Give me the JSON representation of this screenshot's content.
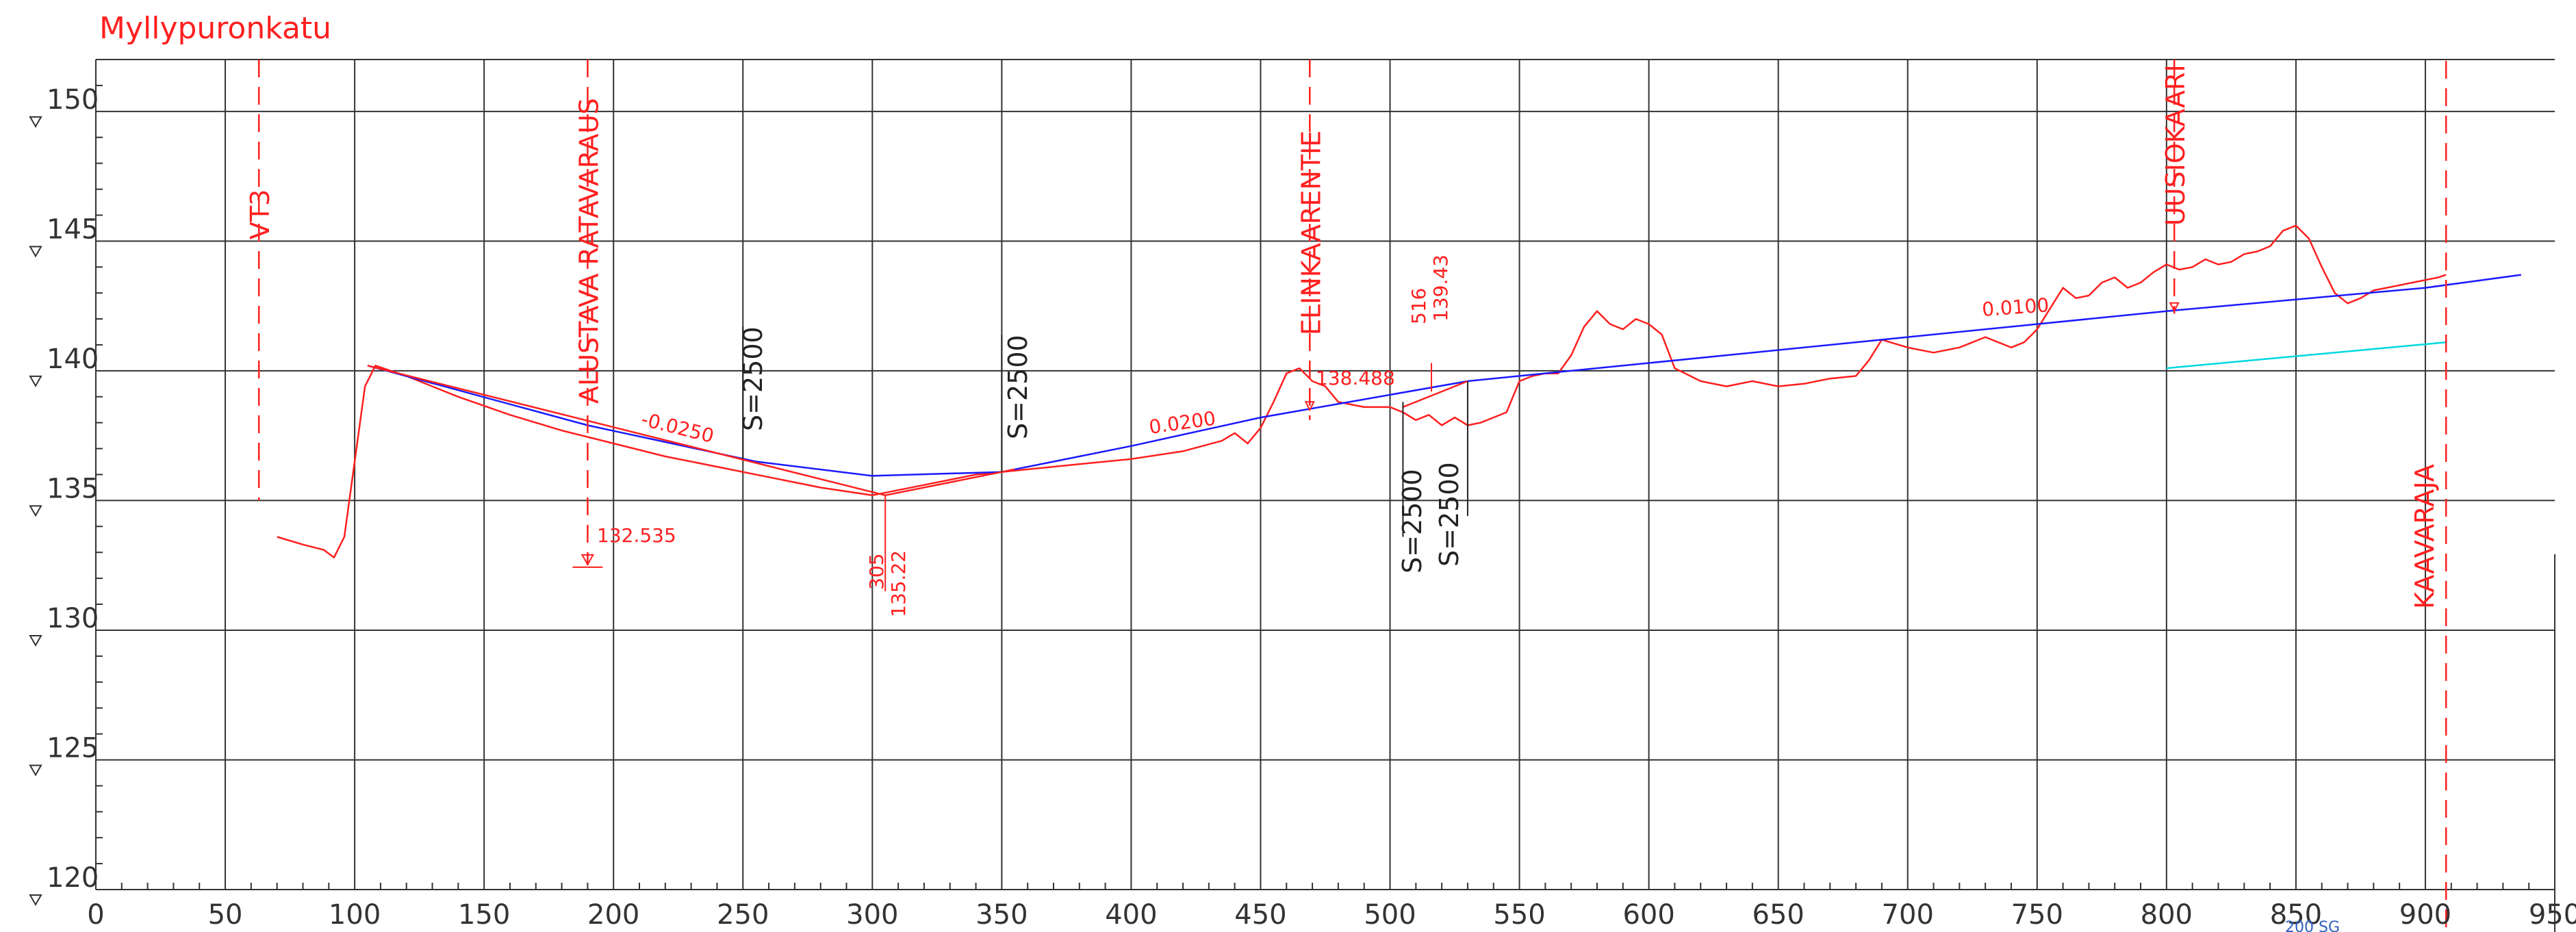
{
  "title": "Myllypuronkatu",
  "chart_data": {
    "type": "line",
    "title": "Myllypuronkatu",
    "xlim": [
      0,
      950
    ],
    "ylim": [
      120,
      152
    ],
    "x_ticks": [
      "0",
      "50",
      "100",
      "150",
      "200",
      "250",
      "300",
      "350",
      "400",
      "450",
      "500",
      "550",
      "600",
      "650",
      "700",
      "750",
      "800",
      "850",
      "900",
      "950"
    ],
    "y_ticks": [
      "120",
      "125",
      "130",
      "135",
      "140",
      "145",
      "150"
    ],
    "grid": true,
    "series": [
      {
        "role": "terrain",
        "color": "#ff1f1f",
        "x": [
          70,
          80,
          88,
          92,
          96,
          100,
          104,
          108,
          120,
          140,
          160,
          180,
          200,
          220,
          240,
          260,
          280,
          300,
          320,
          340,
          360,
          380,
          400,
          420,
          435,
          440,
          445,
          450,
          455,
          460,
          465,
          470,
          475,
          480,
          490,
          500,
          505,
          510,
          515,
          520,
          525,
          530,
          535,
          540,
          545,
          550,
          555,
          560,
          565,
          570,
          575,
          580,
          585,
          590,
          595,
          600,
          605,
          610,
          620,
          630,
          640,
          650,
          660,
          670,
          680,
          685,
          690,
          700,
          710,
          720,
          730,
          740,
          745,
          750,
          755,
          760,
          765,
          770,
          775,
          780,
          785,
          790,
          795,
          800,
          805,
          810,
          815,
          820,
          825,
          830,
          835,
          840,
          845,
          850,
          855,
          860,
          865,
          870,
          875,
          880,
          885,
          890,
          895,
          900,
          905,
          908
        ],
        "y": [
          133.6,
          133.3,
          133.1,
          132.8,
          133.6,
          136.5,
          139.4,
          140.2,
          139.8,
          139.0,
          138.3,
          137.7,
          137.2,
          136.7,
          136.3,
          135.9,
          135.5,
          135.2,
          135.6,
          136.0,
          136.2,
          136.4,
          136.6,
          136.9,
          137.3,
          137.6,
          137.2,
          137.8,
          138.8,
          139.9,
          140.1,
          139.6,
          139.4,
          138.8,
          138.6,
          138.6,
          138.4,
          138.1,
          138.3,
          137.9,
          138.2,
          137.9,
          138.0,
          138.2,
          138.4,
          139.6,
          139.8,
          139.9,
          139.9,
          140.6,
          141.7,
          142.3,
          141.8,
          141.6,
          142.0,
          141.8,
          141.4,
          140.1,
          139.6,
          139.4,
          139.6,
          139.4,
          139.5,
          139.7,
          139.8,
          140.4,
          141.2,
          140.9,
          140.7,
          140.9,
          141.3,
          140.9,
          141.1,
          141.6,
          142.4,
          143.2,
          142.8,
          142.9,
          143.4,
          143.6,
          143.2,
          143.4,
          143.8,
          144.1,
          143.9,
          144.0,
          144.3,
          144.1,
          144.2,
          144.5,
          144.6,
          144.8,
          145.4,
          145.6,
          145.1,
          144.0,
          143.0,
          142.6,
          142.8,
          143.1,
          143.2,
          143.3,
          143.4,
          143.5,
          143.6,
          143.7
        ]
      },
      {
        "role": "design-grade-line",
        "color": "#1a1aff",
        "x": [
          105,
          190,
          255,
          300,
          350,
          400,
          450,
          490,
          530,
          600,
          700,
          800,
          900,
          937
        ],
        "y": [
          140.2,
          137.9,
          136.5,
          135.95,
          136.1,
          137.1,
          138.2,
          138.9,
          139.6,
          140.3,
          141.3,
          142.3,
          143.2,
          143.7
        ]
      },
      {
        "role": "tangent-lines",
        "color": "#ff1f1f",
        "x": [
          105,
          305,
          355,
          null,
          505,
          530
        ],
        "y": [
          140.2,
          135.2,
          136.2,
          null,
          138.6,
          139.6
        ]
      },
      {
        "role": "future-level",
        "color": "#00d8e0",
        "x": [
          800,
          908
        ],
        "y": [
          140.1,
          141.1
        ]
      }
    ],
    "vertical_markers": [
      {
        "label": "VT3",
        "x": 63,
        "style": "dashed"
      },
      {
        "label": "ALUSTAVA RATAVARAUS",
        "x": 190,
        "style": "dashed"
      },
      {
        "label": "ELINKAARENTIE",
        "x": 469,
        "style": "dashed"
      },
      {
        "label": "UUSIOKAARI",
        "x": 803,
        "style": "dashed"
      },
      {
        "label": "KAAVARAJA",
        "x": 908,
        "style": "dashed"
      }
    ],
    "annotations": {
      "slopes": [
        "-0.0250",
        "0.0200",
        "0.0100"
      ],
      "radii": [
        "S=2500",
        "S=2500",
        "S=2500",
        "S=2500"
      ],
      "point_305_station": "305",
      "point_305_elevation": "135.22",
      "point_516_station": "516",
      "point_516_elevation": "139.43",
      "level_marker_1": "132.535",
      "level_marker_2": "138.488",
      "footer_note": "200 SG"
    }
  }
}
